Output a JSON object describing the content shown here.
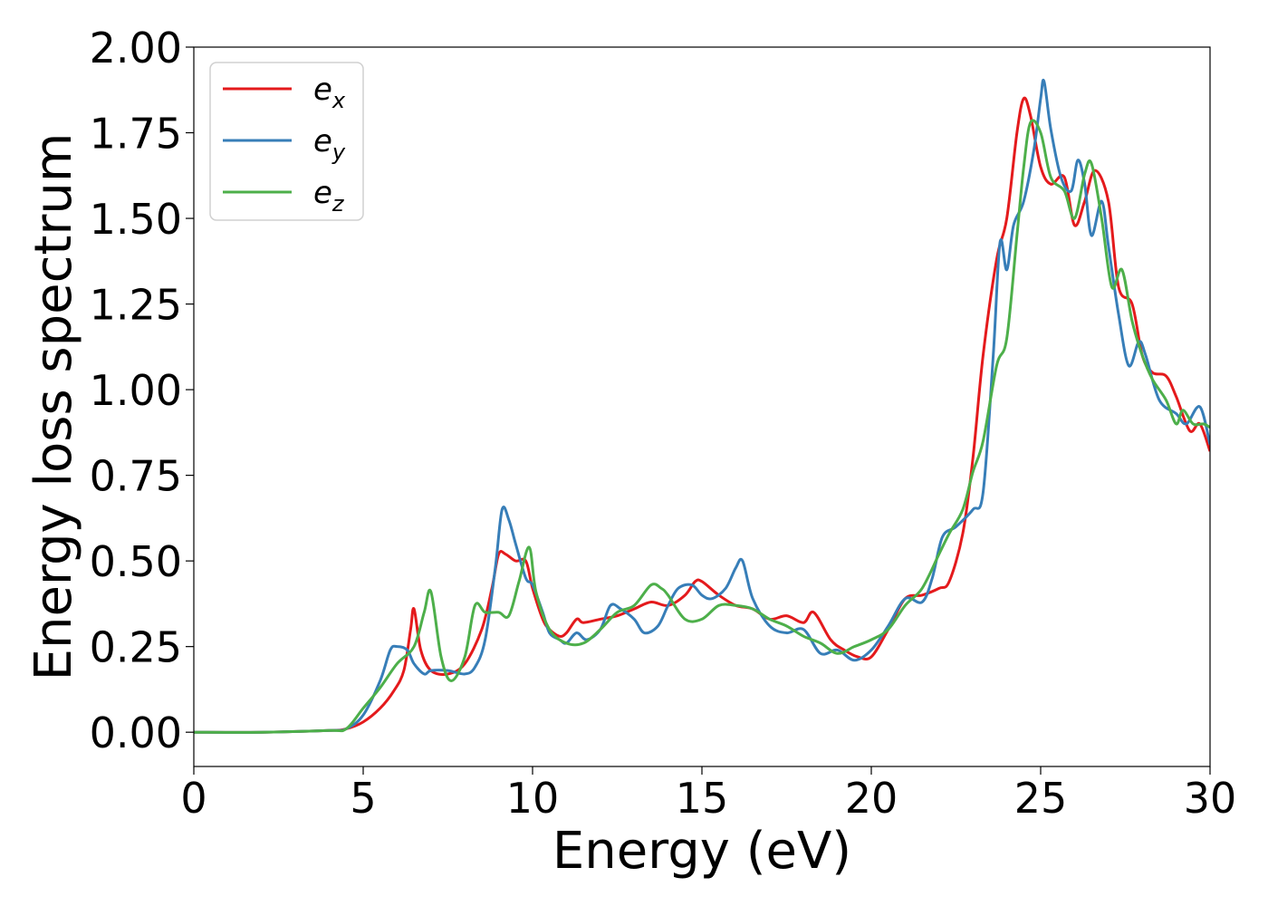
{
  "chart_data": {
    "type": "line",
    "xlabel": "Energy (eV)",
    "ylabel": "Energy loss spectrum",
    "xlim": [
      0,
      30
    ],
    "ylim": [
      -0.1,
      2.0
    ],
    "xticks": [
      0,
      5,
      10,
      15,
      20,
      25,
      30
    ],
    "xtick_labels": [
      "0",
      "5",
      "10",
      "15",
      "20",
      "25",
      "30"
    ],
    "yticks": [
      0,
      0.25,
      0.5,
      0.75,
      1.0,
      1.25,
      1.5,
      1.75,
      2.0
    ],
    "ytick_labels": [
      "0.00",
      "0.25",
      "0.50",
      "0.75",
      "1.00",
      "1.25",
      "1.50",
      "1.75",
      "2.00"
    ],
    "grid": false,
    "legend_position": "top-left",
    "series": [
      {
        "name": "e",
        "subscript": "x",
        "color": "#e41a1c",
        "x": [
          0,
          2,
          4,
          4.5,
          5,
          5.5,
          5.9,
          6.2,
          6.4,
          6.5,
          6.7,
          7,
          7.5,
          8,
          8.5,
          8.8,
          9,
          9.2,
          9.5,
          9.8,
          10,
          10.3,
          10.5,
          10.8,
          11,
          11.3,
          11.5,
          12,
          12.5,
          13,
          13.5,
          14,
          14.5,
          14.8,
          15,
          15.5,
          16,
          16.5,
          17,
          17.5,
          18,
          18.3,
          18.8,
          19.2,
          19.6,
          20,
          20.5,
          21,
          21.5,
          22,
          22.3,
          22.7,
          23,
          23.3,
          23.7,
          24,
          24.3,
          24.5,
          24.7,
          25,
          25.3,
          25.7,
          26,
          26.3,
          26.6,
          27,
          27.3,
          27.7,
          28,
          28.3,
          28.7,
          29,
          29.4,
          29.7,
          30
        ],
        "y": [
          0,
          0,
          0.005,
          0.01,
          0.03,
          0.07,
          0.12,
          0.18,
          0.3,
          0.36,
          0.24,
          0.18,
          0.17,
          0.2,
          0.3,
          0.42,
          0.52,
          0.52,
          0.5,
          0.5,
          0.42,
          0.33,
          0.3,
          0.28,
          0.29,
          0.33,
          0.32,
          0.33,
          0.34,
          0.36,
          0.38,
          0.37,
          0.4,
          0.44,
          0.44,
          0.4,
          0.37,
          0.36,
          0.33,
          0.34,
          0.32,
          0.35,
          0.27,
          0.24,
          0.22,
          0.22,
          0.3,
          0.39,
          0.4,
          0.42,
          0.44,
          0.58,
          0.8,
          1.1,
          1.38,
          1.5,
          1.75,
          1.85,
          1.8,
          1.65,
          1.6,
          1.62,
          1.48,
          1.55,
          1.64,
          1.55,
          1.3,
          1.25,
          1.1,
          1.05,
          1.04,
          0.98,
          0.88,
          0.9,
          0.82
        ]
      },
      {
        "name": "e",
        "subscript": "y",
        "color": "#377eb8",
        "x": [
          0,
          2,
          4,
          4.5,
          5,
          5.5,
          5.8,
          6.0,
          6.3,
          6.5,
          6.8,
          7.0,
          7.5,
          8,
          8.3,
          8.6,
          8.9,
          9.1,
          9.3,
          9.5,
          9.8,
          10.0,
          10.3,
          10.5,
          10.8,
          11,
          11.3,
          11.6,
          12,
          12.3,
          12.6,
          13,
          13.3,
          13.7,
          14,
          14.3,
          14.7,
          15,
          15.3,
          15.7,
          16,
          16.2,
          16.5,
          17,
          17.5,
          18,
          18.5,
          19,
          19.5,
          20,
          20.5,
          21,
          21.5,
          21.8,
          22.1,
          22.5,
          23,
          23.3,
          23.6,
          23.8,
          24,
          24.2,
          24.5,
          24.8,
          25,
          25.1,
          25.3,
          25.6,
          25.9,
          26.1,
          26.3,
          26.5,
          26.8,
          27.0,
          27.3,
          27.6,
          27.9,
          28.1,
          28.5,
          29,
          29.3,
          29.7,
          30
        ],
        "y": [
          0,
          0,
          0.005,
          0.01,
          0.05,
          0.15,
          0.24,
          0.25,
          0.24,
          0.2,
          0.17,
          0.18,
          0.18,
          0.17,
          0.19,
          0.27,
          0.48,
          0.65,
          0.62,
          0.55,
          0.45,
          0.43,
          0.35,
          0.29,
          0.27,
          0.26,
          0.29,
          0.27,
          0.3,
          0.37,
          0.36,
          0.33,
          0.29,
          0.31,
          0.37,
          0.42,
          0.43,
          0.4,
          0.39,
          0.42,
          0.48,
          0.5,
          0.39,
          0.31,
          0.29,
          0.3,
          0.23,
          0.24,
          0.21,
          0.24,
          0.31,
          0.39,
          0.38,
          0.45,
          0.57,
          0.6,
          0.65,
          0.7,
          1.1,
          1.43,
          1.35,
          1.48,
          1.55,
          1.7,
          1.85,
          1.9,
          1.76,
          1.62,
          1.58,
          1.67,
          1.6,
          1.45,
          1.55,
          1.42,
          1.22,
          1.07,
          1.14,
          1.1,
          0.97,
          0.93,
          0.9,
          0.95,
          0.84
        ]
      },
      {
        "name": "e",
        "subscript": "z",
        "color": "#4daf4a",
        "x": [
          0,
          2,
          4,
          4.5,
          5,
          5.5,
          6.0,
          6.5,
          6.8,
          7.0,
          7.3,
          7.6,
          8.0,
          8.3,
          8.6,
          9.0,
          9.3,
          9.6,
          9.9,
          10.1,
          10.5,
          11,
          11.5,
          12,
          12.5,
          13,
          13.5,
          13.8,
          14,
          14.5,
          15,
          15.5,
          16,
          16.5,
          17,
          17.5,
          18,
          18.5,
          19,
          19.5,
          20,
          20.5,
          21,
          21.5,
          22,
          22.3,
          22.7,
          23,
          23.3,
          23.7,
          24,
          24.3,
          24.5,
          24.7,
          25,
          25.3,
          25.7,
          26,
          26.3,
          26.5,
          26.8,
          27.1,
          27.4,
          27.7,
          28,
          28.3,
          28.7,
          29,
          29.2,
          29.5,
          29.8,
          30
        ],
        "y": [
          0,
          0,
          0.005,
          0.01,
          0.07,
          0.13,
          0.2,
          0.25,
          0.35,
          0.41,
          0.22,
          0.15,
          0.22,
          0.37,
          0.35,
          0.35,
          0.34,
          0.44,
          0.54,
          0.41,
          0.3,
          0.26,
          0.26,
          0.3,
          0.35,
          0.37,
          0.43,
          0.42,
          0.4,
          0.33,
          0.33,
          0.37,
          0.37,
          0.36,
          0.33,
          0.31,
          0.28,
          0.26,
          0.23,
          0.25,
          0.27,
          0.3,
          0.37,
          0.42,
          0.52,
          0.58,
          0.65,
          0.76,
          0.85,
          1.07,
          1.15,
          1.45,
          1.65,
          1.78,
          1.75,
          1.62,
          1.58,
          1.5,
          1.63,
          1.66,
          1.5,
          1.3,
          1.35,
          1.2,
          1.1,
          1.03,
          0.97,
          0.9,
          0.94,
          0.9,
          0.9,
          0.89
        ]
      }
    ]
  }
}
